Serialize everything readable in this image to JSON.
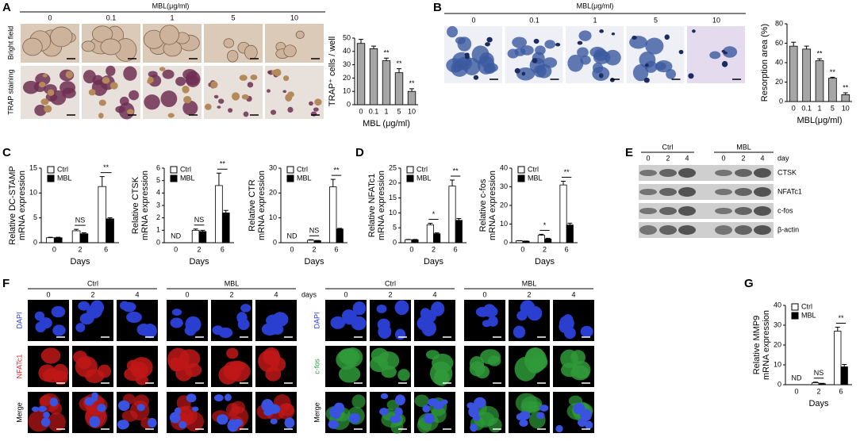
{
  "panel_labels": [
    "A",
    "B",
    "C",
    "D",
    "E",
    "F",
    "G"
  ],
  "panel_a": {
    "header": "MBL(μg/ml)",
    "columns": [
      "0",
      "0.1",
      "1",
      "5",
      "10"
    ],
    "rows": [
      "Bright field",
      "TRAP staining"
    ]
  },
  "panel_b": {
    "header": "MBL(μg/ml)",
    "columns": [
      "0",
      "0.1",
      "1",
      "5",
      "10"
    ]
  },
  "panel_e": {
    "groups": [
      "Ctrl",
      "MBL"
    ],
    "days": [
      "0",
      "2",
      "4",
      "0",
      "2",
      "4"
    ],
    "days_label": "day",
    "bands": [
      "CTSK",
      "NFATc1",
      "c-fos",
      "β-actin"
    ]
  },
  "panel_f": {
    "left": {
      "groups": [
        "Ctrl",
        "MBL"
      ],
      "days": [
        "0",
        "2",
        "4",
        "0",
        "2",
        "4"
      ],
      "days_label": "days",
      "rows": [
        "DAPI",
        "NFATc1",
        "Merge"
      ]
    },
    "right": {
      "groups": [
        "Ctrl",
        "MBL"
      ],
      "days": [
        "0",
        "2",
        "4",
        "0",
        "2",
        "4"
      ],
      "rows": [
        "DAPI",
        "c-fos",
        "Merge"
      ]
    }
  },
  "chart_data": [
    {
      "type": "bar",
      "ylabel": "TRAP⁺ cells / well",
      "xlabel": "MBL (μg/ml)",
      "categories": [
        "0",
        "0.1",
        "1",
        "5",
        "10"
      ],
      "values": [
        46,
        42,
        33,
        24,
        10
      ],
      "errors": [
        3,
        2,
        2,
        3,
        2
      ],
      "color": "#a6a6a6",
      "annotations": [
        null,
        null,
        "**",
        "**",
        "**"
      ],
      "ylim": [
        0,
        50
      ],
      "yticks": [
        0,
        10,
        20,
        30,
        40,
        50
      ]
    },
    {
      "type": "bar",
      "ylabel": "Resorption area (%)",
      "xlabel": "MBL(μg/ml)",
      "categories": [
        "0",
        "0.1",
        "1",
        "5",
        "10"
      ],
      "values": [
        57,
        54,
        42,
        24,
        7
      ],
      "errors": [
        4,
        3,
        2,
        1,
        2
      ],
      "color": "#a6a6a6",
      "annotations": [
        null,
        null,
        "**",
        "**",
        "**"
      ],
      "ylim": [
        0,
        80
      ],
      "yticks": [
        0,
        20,
        40,
        60,
        80
      ]
    },
    {
      "type": "bar",
      "ylabel": [
        "Relative DC-STAMP",
        "mRNA expression"
      ],
      "xlabel": "Days",
      "categories": [
        "0",
        "2",
        "6"
      ],
      "series": [
        {
          "name": "Ctrl",
          "color": "#ffffff",
          "values": [
            1,
            2.4,
            11.3
          ],
          "errors": [
            0.1,
            0.3,
            2
          ]
        },
        {
          "name": "MBL",
          "color": "#000000",
          "values": [
            1,
            1.8,
            4.8
          ],
          "errors": [
            0.1,
            0.2,
            0.2
          ]
        }
      ],
      "annotations": [
        null,
        "NS",
        "**"
      ],
      "legend": "upper left",
      "ylim": [
        0,
        15
      ],
      "yticks": [
        0,
        5,
        10,
        15
      ]
    },
    {
      "type": "bar",
      "ylabel": [
        "Relative CTSK",
        "mRNA expression"
      ],
      "xlabel": "Days",
      "categories": [
        "0",
        "2",
        "6"
      ],
      "series": [
        {
          "name": "Ctrl",
          "color": "#ffffff",
          "values": [
            null,
            1.0,
            4.6
          ],
          "errors": [
            null,
            0.1,
            1
          ]
        },
        {
          "name": "MBL",
          "color": "#000000",
          "values": [
            null,
            0.9,
            2.4
          ],
          "errors": [
            null,
            0.1,
            0.2
          ]
        }
      ],
      "annotations": [
        "ND",
        "NS",
        "**"
      ],
      "legend": "upper left",
      "ylim": [
        0,
        6
      ],
      "yticks": [
        0,
        1,
        2,
        3,
        4,
        5,
        6
      ]
    },
    {
      "type": "bar",
      "ylabel": [
        "Relative CTR",
        "mRNA expression"
      ],
      "xlabel": "Days",
      "categories": [
        "0",
        "2",
        "6"
      ],
      "series": [
        {
          "name": "Ctrl",
          "color": "#ffffff",
          "values": [
            null,
            1,
            22.5
          ],
          "errors": [
            null,
            0.2,
            3
          ]
        },
        {
          "name": "MBL",
          "color": "#000000",
          "values": [
            null,
            0.8,
            5.5
          ],
          "errors": [
            null,
            0.1,
            0.3
          ]
        }
      ],
      "annotations": [
        "ND",
        "NS",
        "**"
      ],
      "legend": "upper left",
      "ylim": [
        0,
        30
      ],
      "yticks": [
        0,
        10,
        20,
        30
      ]
    },
    {
      "type": "bar",
      "ylabel": [
        "Relative NFATc1",
        "mRNA expression"
      ],
      "xlabel": "Days",
      "categories": [
        "0",
        "2",
        "6"
      ],
      "series": [
        {
          "name": "Ctrl",
          "color": "#ffffff",
          "values": [
            1,
            6,
            19
          ],
          "errors": [
            0.1,
            0.5,
            2
          ]
        },
        {
          "name": "MBL",
          "color": "#000000",
          "values": [
            1,
            3,
            7.5
          ],
          "errors": [
            0.1,
            0.3,
            0.6
          ]
        }
      ],
      "annotations": [
        null,
        "*",
        "**"
      ],
      "legend": "upper left",
      "ylim": [
        0,
        25
      ],
      "yticks": [
        0,
        5,
        10,
        15,
        20,
        25
      ]
    },
    {
      "type": "bar",
      "ylabel": [
        "Relative c-fos",
        "mRNA expression"
      ],
      "xlabel": "Days",
      "categories": [
        "0",
        "2",
        "6"
      ],
      "series": [
        {
          "name": "Ctrl",
          "color": "#ffffff",
          "values": [
            1,
            4,
            31
          ],
          "errors": [
            0.1,
            0.5,
            2
          ]
        },
        {
          "name": "MBL",
          "color": "#000000",
          "values": [
            0.8,
            2,
            9.5
          ],
          "errors": [
            0.1,
            0.4,
            1
          ]
        }
      ],
      "annotations": [
        null,
        "*",
        "**"
      ],
      "legend": "upper left",
      "ylim": [
        0,
        40
      ],
      "yticks": [
        0,
        10,
        20,
        30,
        40
      ]
    },
    {
      "type": "bar",
      "ylabel": [
        "Relative MMP9",
        "mRNA expression"
      ],
      "xlabel": "Days",
      "categories": [
        "0",
        "2",
        "6"
      ],
      "series": [
        {
          "name": "Ctrl",
          "color": "#ffffff",
          "values": [
            null,
            1,
            27
          ],
          "errors": [
            null,
            0.3,
            2
          ]
        },
        {
          "name": "MBL",
          "color": "#000000",
          "values": [
            null,
            0.5,
            9
          ],
          "errors": [
            null,
            0.2,
            1.2
          ]
        }
      ],
      "annotations": [
        "ND",
        "NS",
        "**"
      ],
      "legend": "upper left",
      "ylim": [
        0,
        40
      ],
      "yticks": [
        0,
        10,
        20,
        30,
        40
      ]
    }
  ]
}
